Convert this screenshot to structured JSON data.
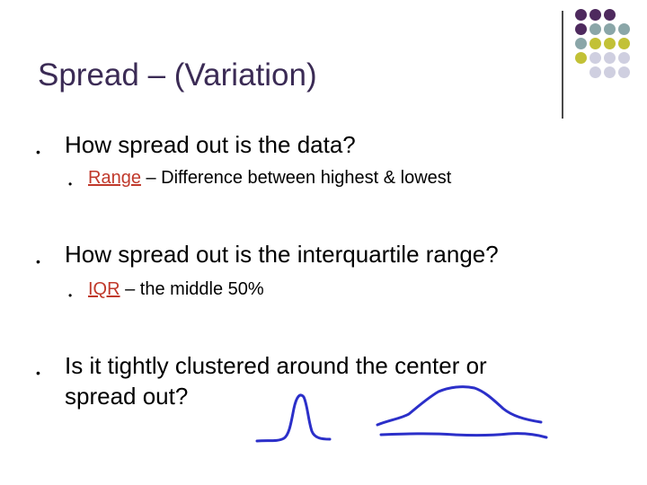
{
  "slide": {
    "title": "Spread – (Variation)",
    "bullets": [
      {
        "text": "How spread out is the data?",
        "sub": {
          "keyword": "Range",
          "rest": " – Difference between highest & lowest"
        }
      },
      {
        "text": "How spread out is the interquartile range?",
        "sub": {
          "keyword": "IQR",
          "rest": " – the middle 50%"
        }
      },
      {
        "line1": "Is it tightly clustered around the center or",
        "line2": "spread out?"
      }
    ],
    "bullet_mark": "•"
  },
  "colors": {
    "title": "#3b2b55",
    "keyword": "#c0392b",
    "ink": "#2b2fc9",
    "dot_purple": "#4e2a5e",
    "dot_teal": "#8aa6a8",
    "dot_olive": "#c2c136",
    "dot_lavender": "#cfcfe0"
  },
  "decor": {
    "dot_grid": [
      [
        "purple",
        "purple",
        "purple"
      ],
      [
        "purple",
        "teal",
        "teal",
        "teal"
      ],
      [
        "teal",
        "olive",
        "olive",
        "olive"
      ],
      [
        "olive",
        "lavender",
        "lavender",
        "lavender"
      ],
      [
        "lavender",
        "lavender",
        "lavender"
      ]
    ]
  }
}
